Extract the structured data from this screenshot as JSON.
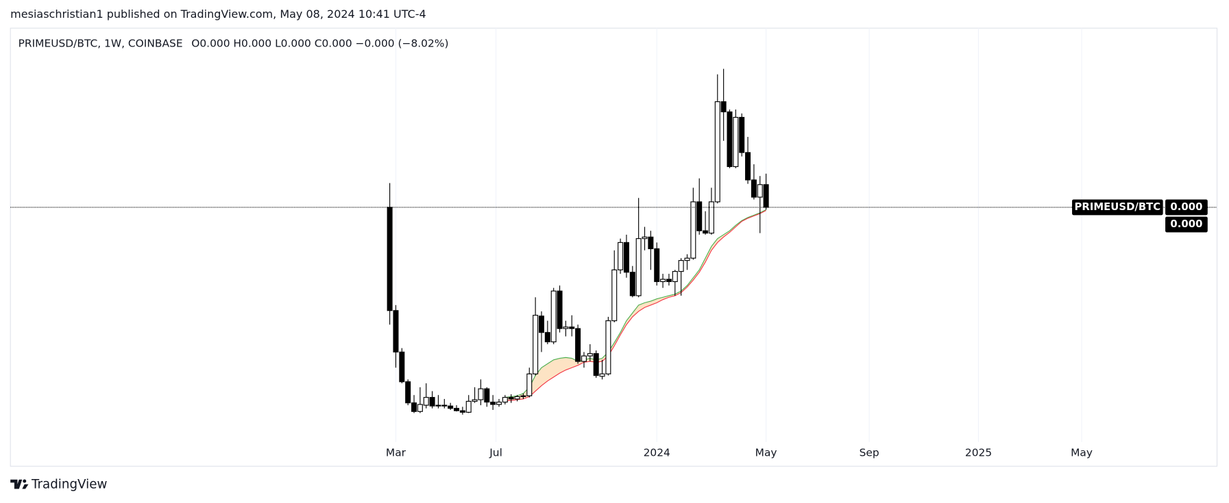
{
  "header": "mesiaschristian1 published on TradingView.com, May 08, 2024 10:41 UTC-4",
  "footer": "TradingView",
  "chart_data": {
    "type": "candlestick",
    "title": "PRIMEUSD/BTC, 1W, COINBASE",
    "ohlc_legend": "O0.000 H0.000 L0.000 C0.000 −0.000 (−8.02%)",
    "categories": [
      null,
      null,
      null,
      null,
      null,
      null,
      null,
      null,
      null,
      null,
      null,
      null,
      null,
      null,
      null,
      null,
      null,
      null,
      null,
      null,
      null,
      null,
      null,
      null,
      null,
      null,
      null,
      null,
      null,
      null,
      null,
      null,
      null,
      null,
      null,
      null,
      null,
      null,
      null,
      null,
      null,
      null,
      null,
      null,
      null,
      null,
      null,
      null,
      null,
      null,
      null,
      null,
      null,
      null,
      null,
      null,
      null,
      null,
      null,
      null,
      null,
      null,
      null
    ],
    "open": [
      295,
      163,
      110,
      72,
      45,
      34,
      42,
      52,
      41,
      42,
      41,
      38,
      35,
      33,
      47,
      49,
      63,
      46,
      43,
      46,
      52,
      50,
      53,
      54,
      82,
      156,
      135,
      123,
      188,
      140,
      142,
      140,
      98,
      105,
      108,
      79,
      82,
      150,
      215,
      250,
      212,
      182,
      255,
      257,
      242,
      200,
      203,
      200,
      213,
      227,
      230,
      302,
      265,
      262,
      302,
      430,
      417,
      347,
      410,
      365,
      330,
      308,
      324
    ],
    "high": [
      326,
      170,
      115,
      75,
      55,
      65,
      70,
      60,
      55,
      50,
      45,
      42,
      40,
      55,
      65,
      75,
      65,
      55,
      50,
      55,
      56,
      55,
      57,
      90,
      180,
      162,
      150,
      192,
      195,
      150,
      157,
      145,
      110,
      120,
      112,
      100,
      155,
      240,
      255,
      260,
      220,
      307,
      270,
      265,
      250,
      210,
      210,
      215,
      230,
      235,
      320,
      332,
      290,
      320,
      465,
      472,
      420,
      420,
      415,
      385,
      350,
      335,
      338
    ],
    "low": [
      145,
      90,
      70,
      42,
      32,
      32,
      38,
      38,
      38,
      38,
      36,
      34,
      30,
      32,
      45,
      42,
      40,
      36,
      40,
      43,
      45,
      47,
      50,
      52,
      80,
      110,
      120,
      120,
      135,
      130,
      130,
      95,
      90,
      98,
      77,
      75,
      80,
      148,
      210,
      205,
      180,
      180,
      240,
      215,
      195,
      192,
      195,
      182,
      182,
      215,
      228,
      260,
      260,
      260,
      300,
      380,
      345,
      345,
      360,
      325,
      305,
      262,
      292
    ],
    "close": [
      163,
      110,
      72,
      45,
      34,
      43,
      52,
      41,
      42,
      41,
      38,
      35,
      33,
      47,
      49,
      63,
      46,
      43,
      46,
      52,
      50,
      53,
      54,
      82,
      157,
      135,
      123,
      188,
      140,
      142,
      140,
      98,
      105,
      108,
      80,
      82,
      150,
      215,
      250,
      212,
      182,
      255,
      257,
      242,
      200,
      203,
      200,
      213,
      227,
      230,
      302,
      265,
      262,
      302,
      430,
      417,
      347,
      410,
      365,
      330,
      308,
      324,
      295
    ],
    "overlays": [
      {
        "color": "#4caf50",
        "values": [
          null,
          null,
          null,
          null,
          null,
          null,
          null,
          null,
          null,
          null,
          null,
          null,
          null,
          null,
          null,
          null,
          null,
          null,
          null,
          52,
          53,
          54,
          57,
          65,
          80,
          90,
          95,
          100,
          102,
          103,
          102,
          98,
          100,
          102,
          100,
          102,
          110,
          122,
          135,
          150,
          160,
          170,
          173,
          175,
          178,
          180,
          182,
          184,
          188,
          195,
          205,
          215,
          230,
          245,
          255,
          260,
          265,
          272,
          278,
          282,
          285,
          288,
          292
        ]
      },
      {
        "color": "#f23645",
        "values": [
          null,
          null,
          null,
          null,
          null,
          null,
          null,
          null,
          null,
          null,
          null,
          null,
          null,
          null,
          null,
          null,
          null,
          null,
          null,
          48,
          48,
          49,
          50,
          53,
          60,
          67,
          73,
          78,
          83,
          87,
          90,
          93,
          97,
          98,
          97,
          98,
          105,
          118,
          132,
          145,
          155,
          162,
          167,
          170,
          173,
          177,
          180,
          182,
          186,
          193,
          202,
          212,
          225,
          240,
          250,
          257,
          263,
          270,
          277,
          281,
          284,
          287,
          291
        ]
      }
    ],
    "fill_color": "#fde3c4",
    "up_color": "#ffffff",
    "down_color": "#000000",
    "ylim": [
      0,
      520
    ],
    "xlim": [
      -62.5,
      136.3
    ],
    "xticks": [
      {
        "value": 1,
        "label": "Mar"
      },
      {
        "value": 17.5,
        "label": "Jul"
      },
      {
        "value": 44,
        "label": "2024"
      },
      {
        "value": 62,
        "label": "May"
      },
      {
        "value": 79,
        "label": "Sep"
      },
      {
        "value": 97,
        "label": "2025"
      },
      {
        "value": 114,
        "label": "May"
      }
    ],
    "grid": true,
    "price_label": {
      "symbol": "PRIMEUSD/BTC",
      "values": [
        "0.000",
        "0.000"
      ]
    }
  }
}
